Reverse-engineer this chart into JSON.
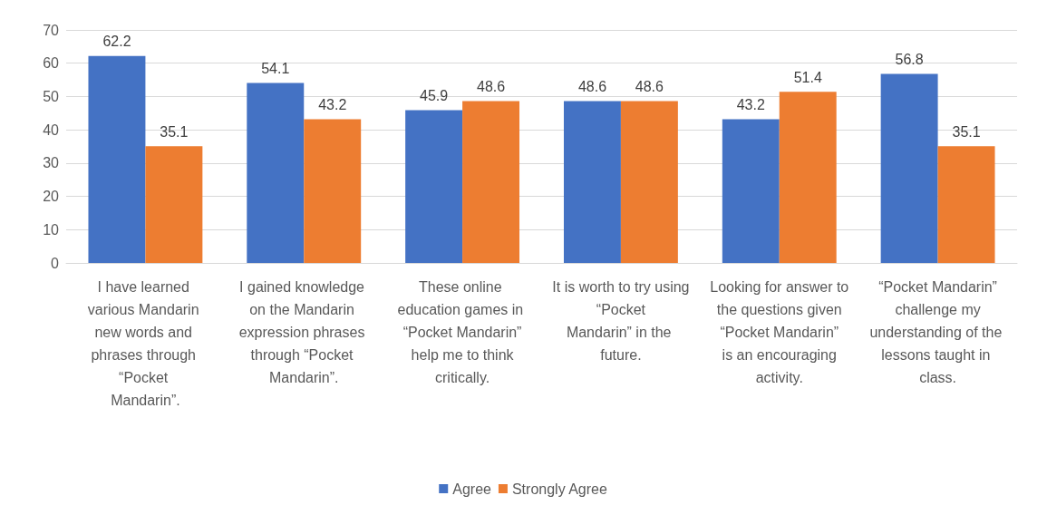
{
  "chart_data": {
    "type": "bar",
    "categories": [
      "I have learned various Mandarin new words and phrases through “Pocket Mandarin”.",
      "I gained knowledge on the Mandarin expression phrases through “Pocket Mandarin”.",
      "These online education games in “Pocket Mandarin” help me to think critically.",
      "It is worth to try using “Pocket Mandarin” in the future.",
      "Looking for answer to the questions given “Pocket Mandarin” is an encouraging activity.",
      "“Pocket Mandarin” challenge my understanding of the lessons taught in class."
    ],
    "series": [
      {
        "name": "Agree",
        "color": "#4472c4",
        "values": [
          62.2,
          54.1,
          45.9,
          48.6,
          43.2,
          56.8
        ]
      },
      {
        "name": "Strongly Agree",
        "color": "#ed7d31",
        "values": [
          35.1,
          43.2,
          48.6,
          48.6,
          51.4,
          35.1
        ]
      }
    ],
    "ylim": [
      0,
      70
    ],
    "yticks": [
      0,
      10,
      20,
      30,
      40,
      50,
      60,
      70
    ],
    "grid": "y",
    "legend": "bottom",
    "data_labels": true
  }
}
